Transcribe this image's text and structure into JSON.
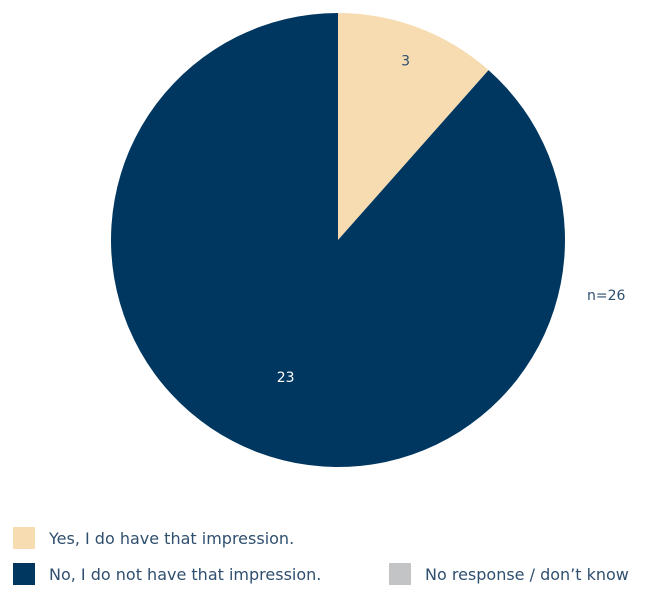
{
  "chart_data": {
    "type": "pie",
    "title": "",
    "slices": [
      {
        "label": "Yes, I do have that impression.",
        "value": 3,
        "color": "#f6dcb0"
      },
      {
        "label": "No, I do not have that impression.",
        "value": 23,
        "color": "#003760"
      },
      {
        "label": "No response / don’t know",
        "value": 0,
        "color": "#c3c4c6"
      }
    ],
    "sample_size_label": "n=26",
    "legend_position": "bottom-left"
  }
}
